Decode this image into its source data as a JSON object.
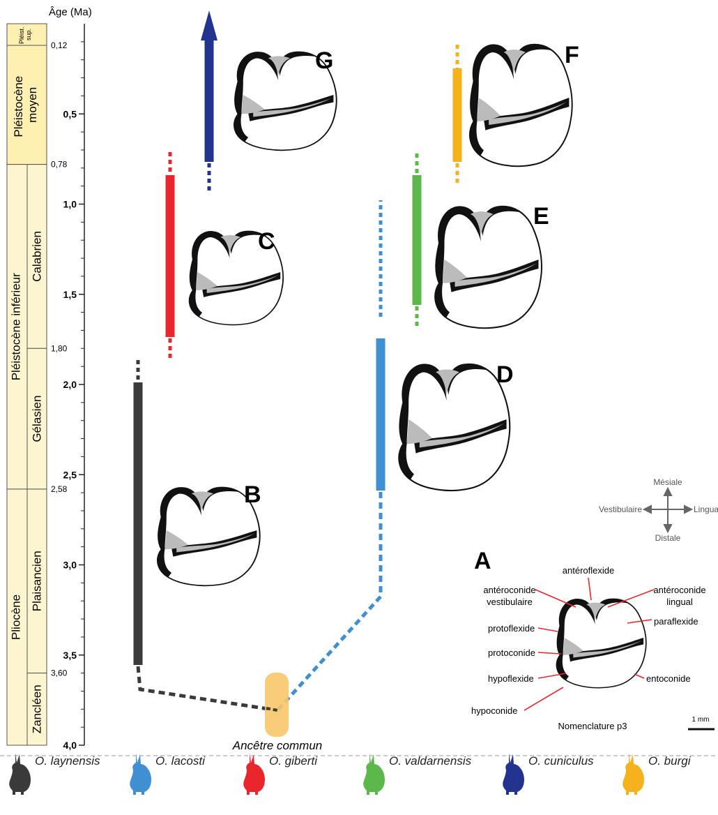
{
  "axis": {
    "title": "Âge (Ma)",
    "ticks_major": [
      {
        "age": 1.0,
        "label": "1,0"
      },
      {
        "age": 1.5,
        "label": "1,5"
      },
      {
        "age": 2.0,
        "label": "2,0"
      },
      {
        "age": 2.5,
        "label": "2,5"
      },
      {
        "age": 3.0,
        "label": "3,0"
      },
      {
        "age": 3.5,
        "label": "3,5"
      },
      {
        "age": 4.0,
        "label": "4,0"
      }
    ],
    "tick_05": {
      "age": 0.5,
      "label": "0,5"
    },
    "boundaries": [
      {
        "age": 0.12,
        "label": "0,12"
      },
      {
        "age": 0.78,
        "label": "0,78"
      },
      {
        "age": 1.8,
        "label": "1,80"
      },
      {
        "age": 2.58,
        "label": "2,58"
      },
      {
        "age": 3.6,
        "label": "3,60"
      }
    ]
  },
  "stratigraphy": {
    "epochs": [
      {
        "label": "Pléist.\nsup.",
        "from": 0.0,
        "to": 0.12,
        "color": "#fdf0b0"
      },
      {
        "label": "Pléistocène\nmoyen",
        "from": 0.12,
        "to": 0.78,
        "color": "#fdf0b0"
      },
      {
        "label": "Pléistocène inférieur",
        "from": 0.78,
        "to": 2.58,
        "color": "#fdf5cf"
      },
      {
        "label": "Pliocène",
        "from": 2.58,
        "to": 4.0,
        "color": "#fdf5cf"
      }
    ],
    "stages": [
      {
        "label": "Calabrien",
        "from": 0.78,
        "to": 1.8
      },
      {
        "label": "Gélasien",
        "from": 1.8,
        "to": 2.58
      },
      {
        "label": "Plaisancien",
        "from": 2.58,
        "to": 3.6
      },
      {
        "label": "Zancléen",
        "from": 3.6,
        "to": 4.0
      }
    ]
  },
  "ancestor_label": "Ancêtre commun",
  "specimens": [
    {
      "letter": "B"
    },
    {
      "letter": "C"
    },
    {
      "letter": "D"
    },
    {
      "letter": "E"
    },
    {
      "letter": "F"
    },
    {
      "letter": "G"
    }
  ],
  "nomenclature": {
    "letter": "A",
    "title": "Nomenclature p3",
    "scale": "1 mm",
    "labels": {
      "anteroflexide": "antéroflexide",
      "anteroconide_vest_1": "antéroconide",
      "anteroconide_vest_2": "vestibulaire",
      "anteroconide_ling_1": "antéroconide",
      "anteroconide_ling_2": "lingual",
      "paraflexide": "paraflexide",
      "protoflexide": "protoflexide",
      "protoconide": "protoconide",
      "hypoflexide": "hypoflexide",
      "entoconide": "entoconide",
      "hypoconide": "hypoconide"
    }
  },
  "orientation": {
    "mesial": "Mésiale",
    "distal": "Distale",
    "vestibular": "Vestibulaire",
    "lingual": "Linguale"
  },
  "legend": [
    {
      "name": "O. laynensis",
      "color": "#3a3a3a"
    },
    {
      "name": "O. lacosti",
      "color": "#3f8fd2"
    },
    {
      "name": "O. giberti",
      "color": "#e8262c"
    },
    {
      "name": "O. valdarnensis",
      "color": "#5cb84a"
    },
    {
      "name": "O. cuniculus",
      "color": "#22348f"
    },
    {
      "name": "O. burgi",
      "color": "#f5b21c"
    }
  ],
  "colors": {
    "laynensis": "#3a3a3a",
    "lacosti": "#3f8fd2",
    "giberti": "#e8262c",
    "valdarnensis": "#5cb84a",
    "cuniculus": "#22348f",
    "burgi": "#f5b21c",
    "ancestor": "#f7c66a",
    "arrow": "#e8262c"
  }
}
